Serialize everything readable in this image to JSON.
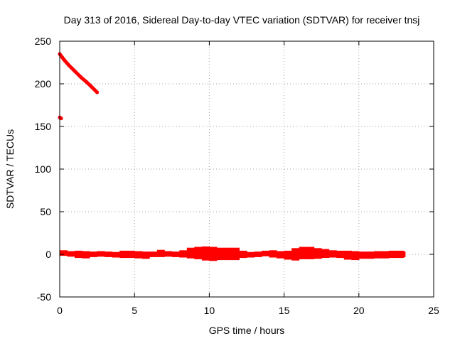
{
  "chart_data": {
    "type": "scatter",
    "title": "Day 313 of 2016, Sidereal Day-to-day VTEC variation (SDTVAR) for receiver tnsj",
    "xlabel": "GPS time / hours",
    "ylabel": "SDTVAR / TECUs",
    "xlim": [
      0,
      25
    ],
    "ylim": [
      -50,
      250
    ],
    "x_ticks": [
      0,
      5,
      10,
      15,
      20,
      25
    ],
    "y_ticks": [
      -50,
      0,
      50,
      100,
      150,
      200,
      250
    ],
    "grid": true,
    "legend": "none",
    "color": "#ff0000",
    "series": [
      {
        "segments": [
          {
            "x": [
              0.0,
              0.05,
              0.1
            ],
            "y": [
              160.5,
              160.0,
              159.5
            ]
          },
          {
            "x": [
              0.0,
              0.3,
              0.6,
              1.0,
              1.4,
              1.8,
              2.1,
              2.5
            ],
            "y": [
              235,
              228,
              222,
              215,
              208,
              202,
              197,
              190
            ]
          }
        ]
      },
      {
        "x": [
          0.0,
          0.5,
          1.0,
          1.5,
          2.0,
          2.5,
          3.0,
          3.5,
          4.0,
          4.5,
          5.0,
          5.5,
          6.0,
          6.5,
          7.0,
          7.5,
          8.0,
          8.5,
          9.0,
          9.5,
          10.0,
          10.5,
          11.0,
          11.5,
          12.0,
          12.5,
          13.0,
          13.5,
          14.0,
          14.5,
          15.0,
          15.5,
          16.0,
          16.5,
          17.0,
          17.5,
          18.0,
          18.5,
          19.0,
          19.5,
          20.0,
          20.5,
          21.0,
          21.5,
          22.0,
          22.5,
          23.0
        ],
        "y": [
          1.5,
          0.5,
          0.0,
          -0.5,
          0.0,
          0.5,
          0.0,
          -0.5,
          0.0,
          0.0,
          -0.5,
          -1.0,
          0.0,
          1.0,
          0.5,
          0.0,
          0.5,
          1.5,
          1.5,
          1.0,
          0.5,
          0.5,
          0.5,
          0.5,
          0.0,
          -0.5,
          0.0,
          1.0,
          0.5,
          -0.5,
          -1.0,
          0.0,
          1.5,
          1.5,
          1.0,
          1.0,
          0.5,
          0.0,
          -1.0,
          -1.5,
          -1.0,
          -1.0,
          -0.5,
          -0.5,
          0.0,
          0.0,
          0.0
        ],
        "spread": [
          2,
          2,
          3,
          3,
          2,
          2,
          2,
          2,
          3,
          3,
          3,
          3,
          2,
          3,
          2,
          2,
          3,
          5,
          6,
          7,
          7,
          6,
          6,
          6,
          3,
          2,
          2,
          2,
          3,
          3,
          4,
          6,
          6,
          6,
          5,
          4,
          3,
          3,
          4,
          4,
          3,
          3,
          3,
          3,
          3,
          3,
          2
        ]
      }
    ]
  }
}
